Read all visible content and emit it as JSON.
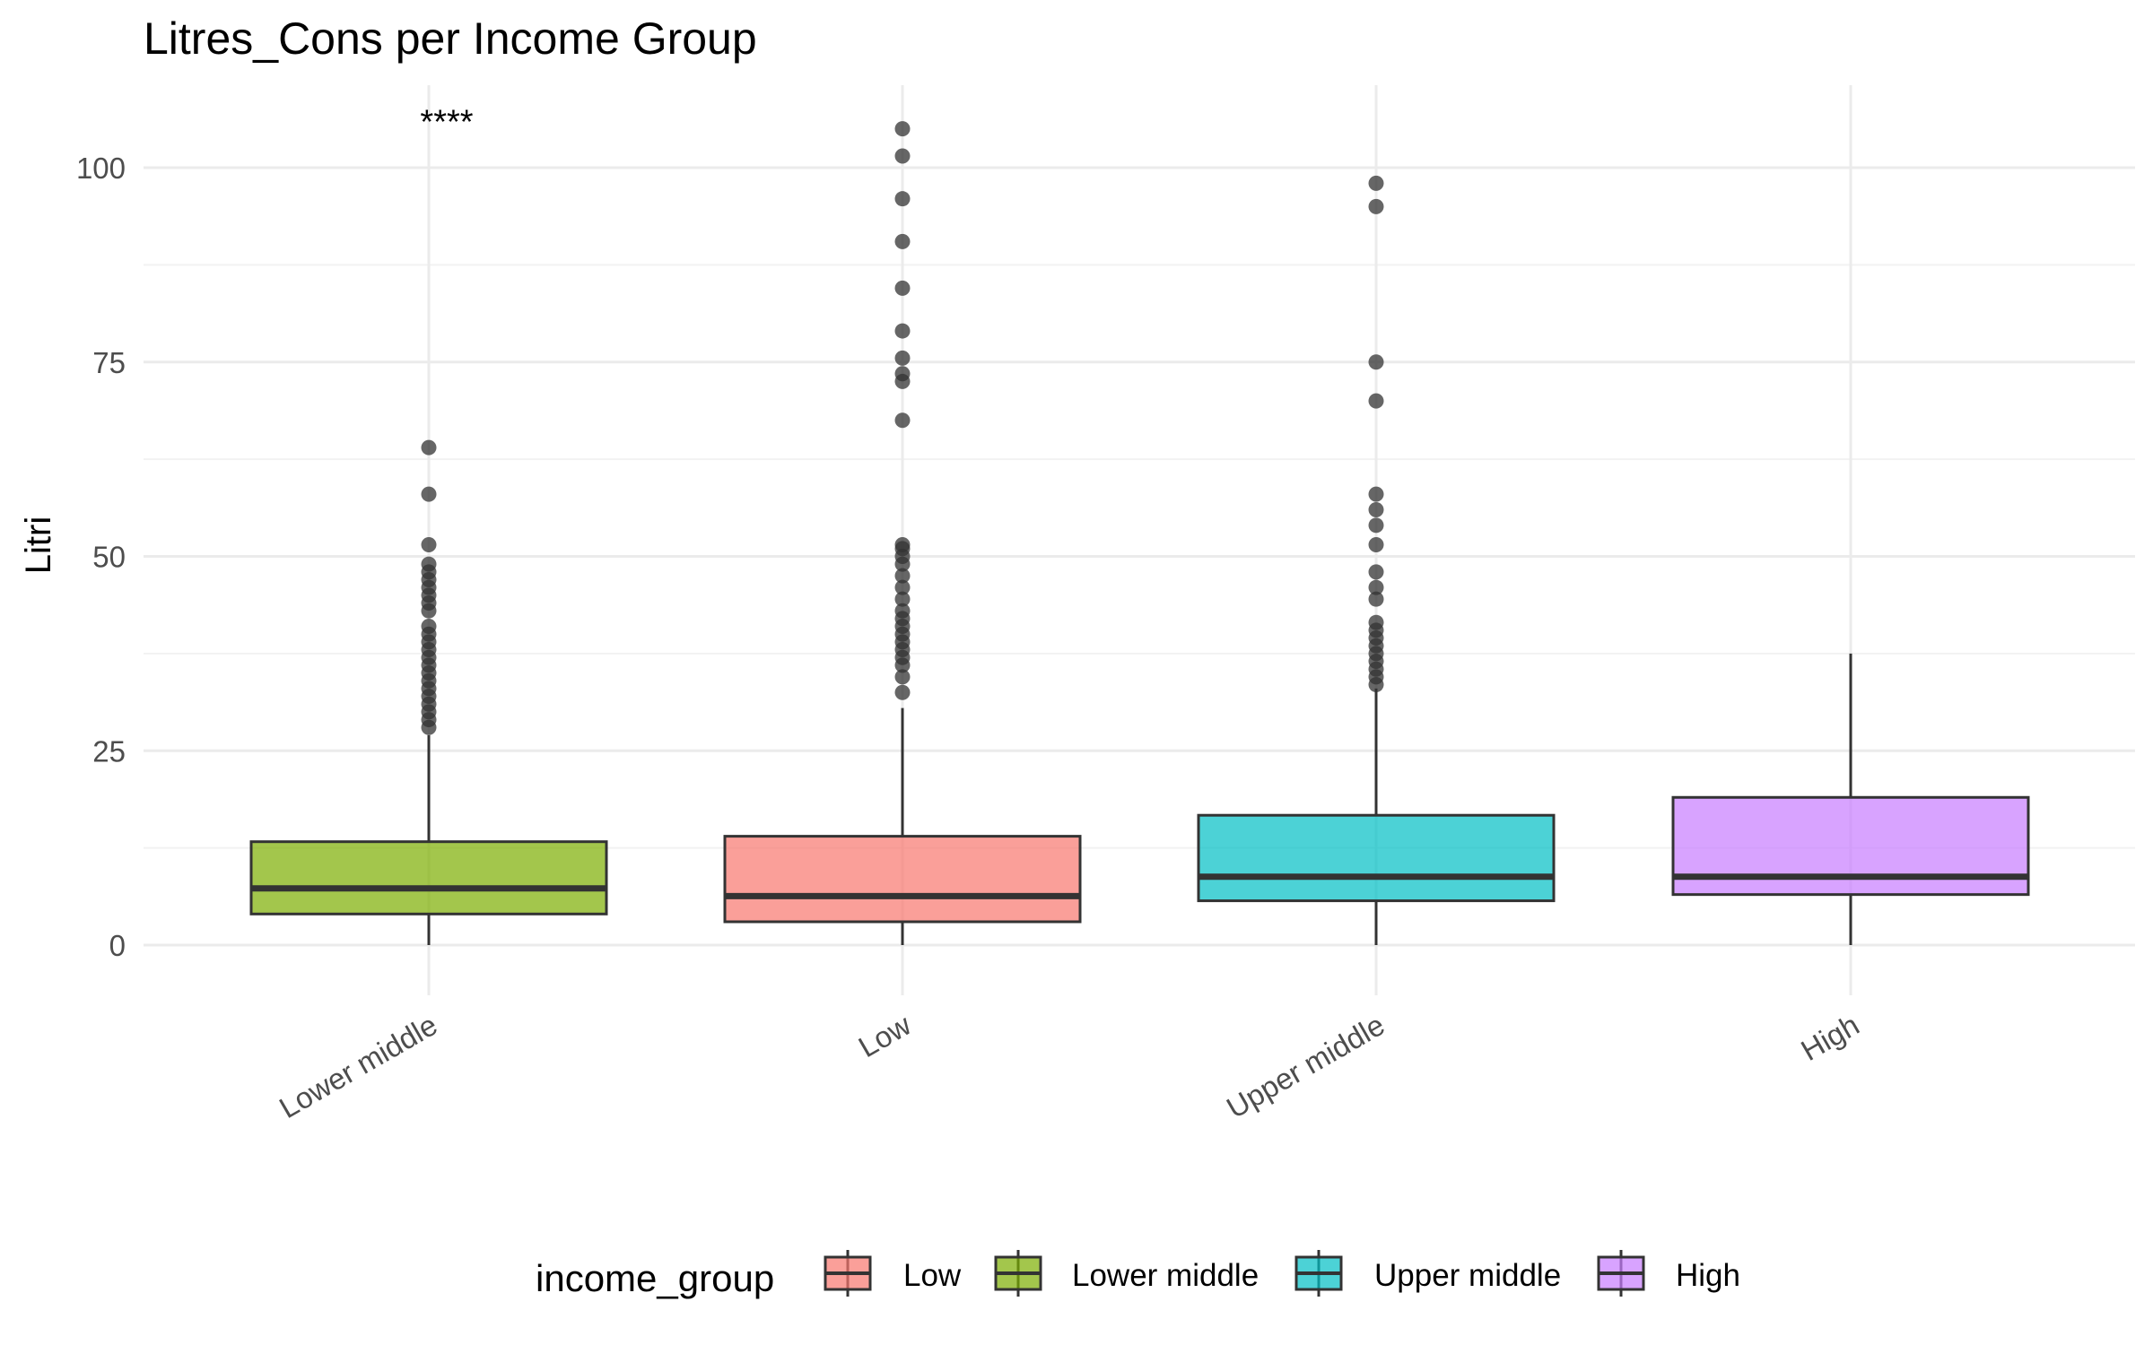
{
  "chart_data": {
    "type": "box",
    "title": "Litres_Cons per Income Group",
    "xlabel": "",
    "ylabel": "Litri",
    "ylim": [
      -10,
      110
    ],
    "y_ticks": [
      0,
      25,
      50,
      75,
      100
    ],
    "y_tick_labels": [
      "0",
      "25",
      "50",
      "75",
      "100"
    ],
    "grid": true,
    "legend": {
      "title": "income_group",
      "position": "bottom",
      "entries": [
        "Low",
        "Lower middle",
        "Upper middle",
        "High"
      ]
    },
    "annotation": {
      "text": "****",
      "category": "Lower middle",
      "y": 107
    },
    "categories": [
      "Lower middle",
      "Low",
      "Upper middle",
      "High"
    ],
    "series": [
      {
        "category": "Lower middle",
        "color": "#7CAE00",
        "whisker_low": 0,
        "q1": 4,
        "median": 7.3,
        "q3": 13.3,
        "whisker_high": 27,
        "outliers": [
          28,
          29,
          30,
          31,
          32,
          33,
          34,
          35,
          36,
          37,
          38,
          39,
          40,
          41,
          43,
          44,
          45,
          46,
          47,
          48,
          49,
          51.5,
          58,
          64
        ]
      },
      {
        "category": "Low",
        "color": "#F8766D",
        "whisker_low": 0,
        "q1": 3,
        "median": 6.3,
        "q3": 14,
        "whisker_high": 30.5,
        "outliers": [
          32.5,
          34.5,
          36,
          37,
          38,
          39,
          40,
          41,
          42,
          43,
          44.5,
          46,
          47.5,
          49,
          50,
          51,
          51.5,
          67.5,
          72.5,
          73.5,
          75.5,
          79,
          84.5,
          90.5,
          96,
          101.5,
          105
        ]
      },
      {
        "category": "Upper middle",
        "color": "#00BFC4",
        "whisker_low": 0,
        "q1": 5.7,
        "median": 8.8,
        "q3": 16.7,
        "whisker_high": 33,
        "outliers": [
          33.5,
          34.5,
          35.5,
          36.5,
          37.5,
          38.5,
          39.5,
          40.5,
          41.5,
          44.5,
          46,
          48,
          51.5,
          54,
          56,
          58,
          70,
          75,
          95,
          98
        ]
      },
      {
        "category": "High",
        "color": "#C77CFF",
        "whisker_low": 0,
        "q1": 6.5,
        "median": 8.8,
        "q3": 19,
        "whisker_high": 37.5,
        "outliers": []
      }
    ]
  }
}
